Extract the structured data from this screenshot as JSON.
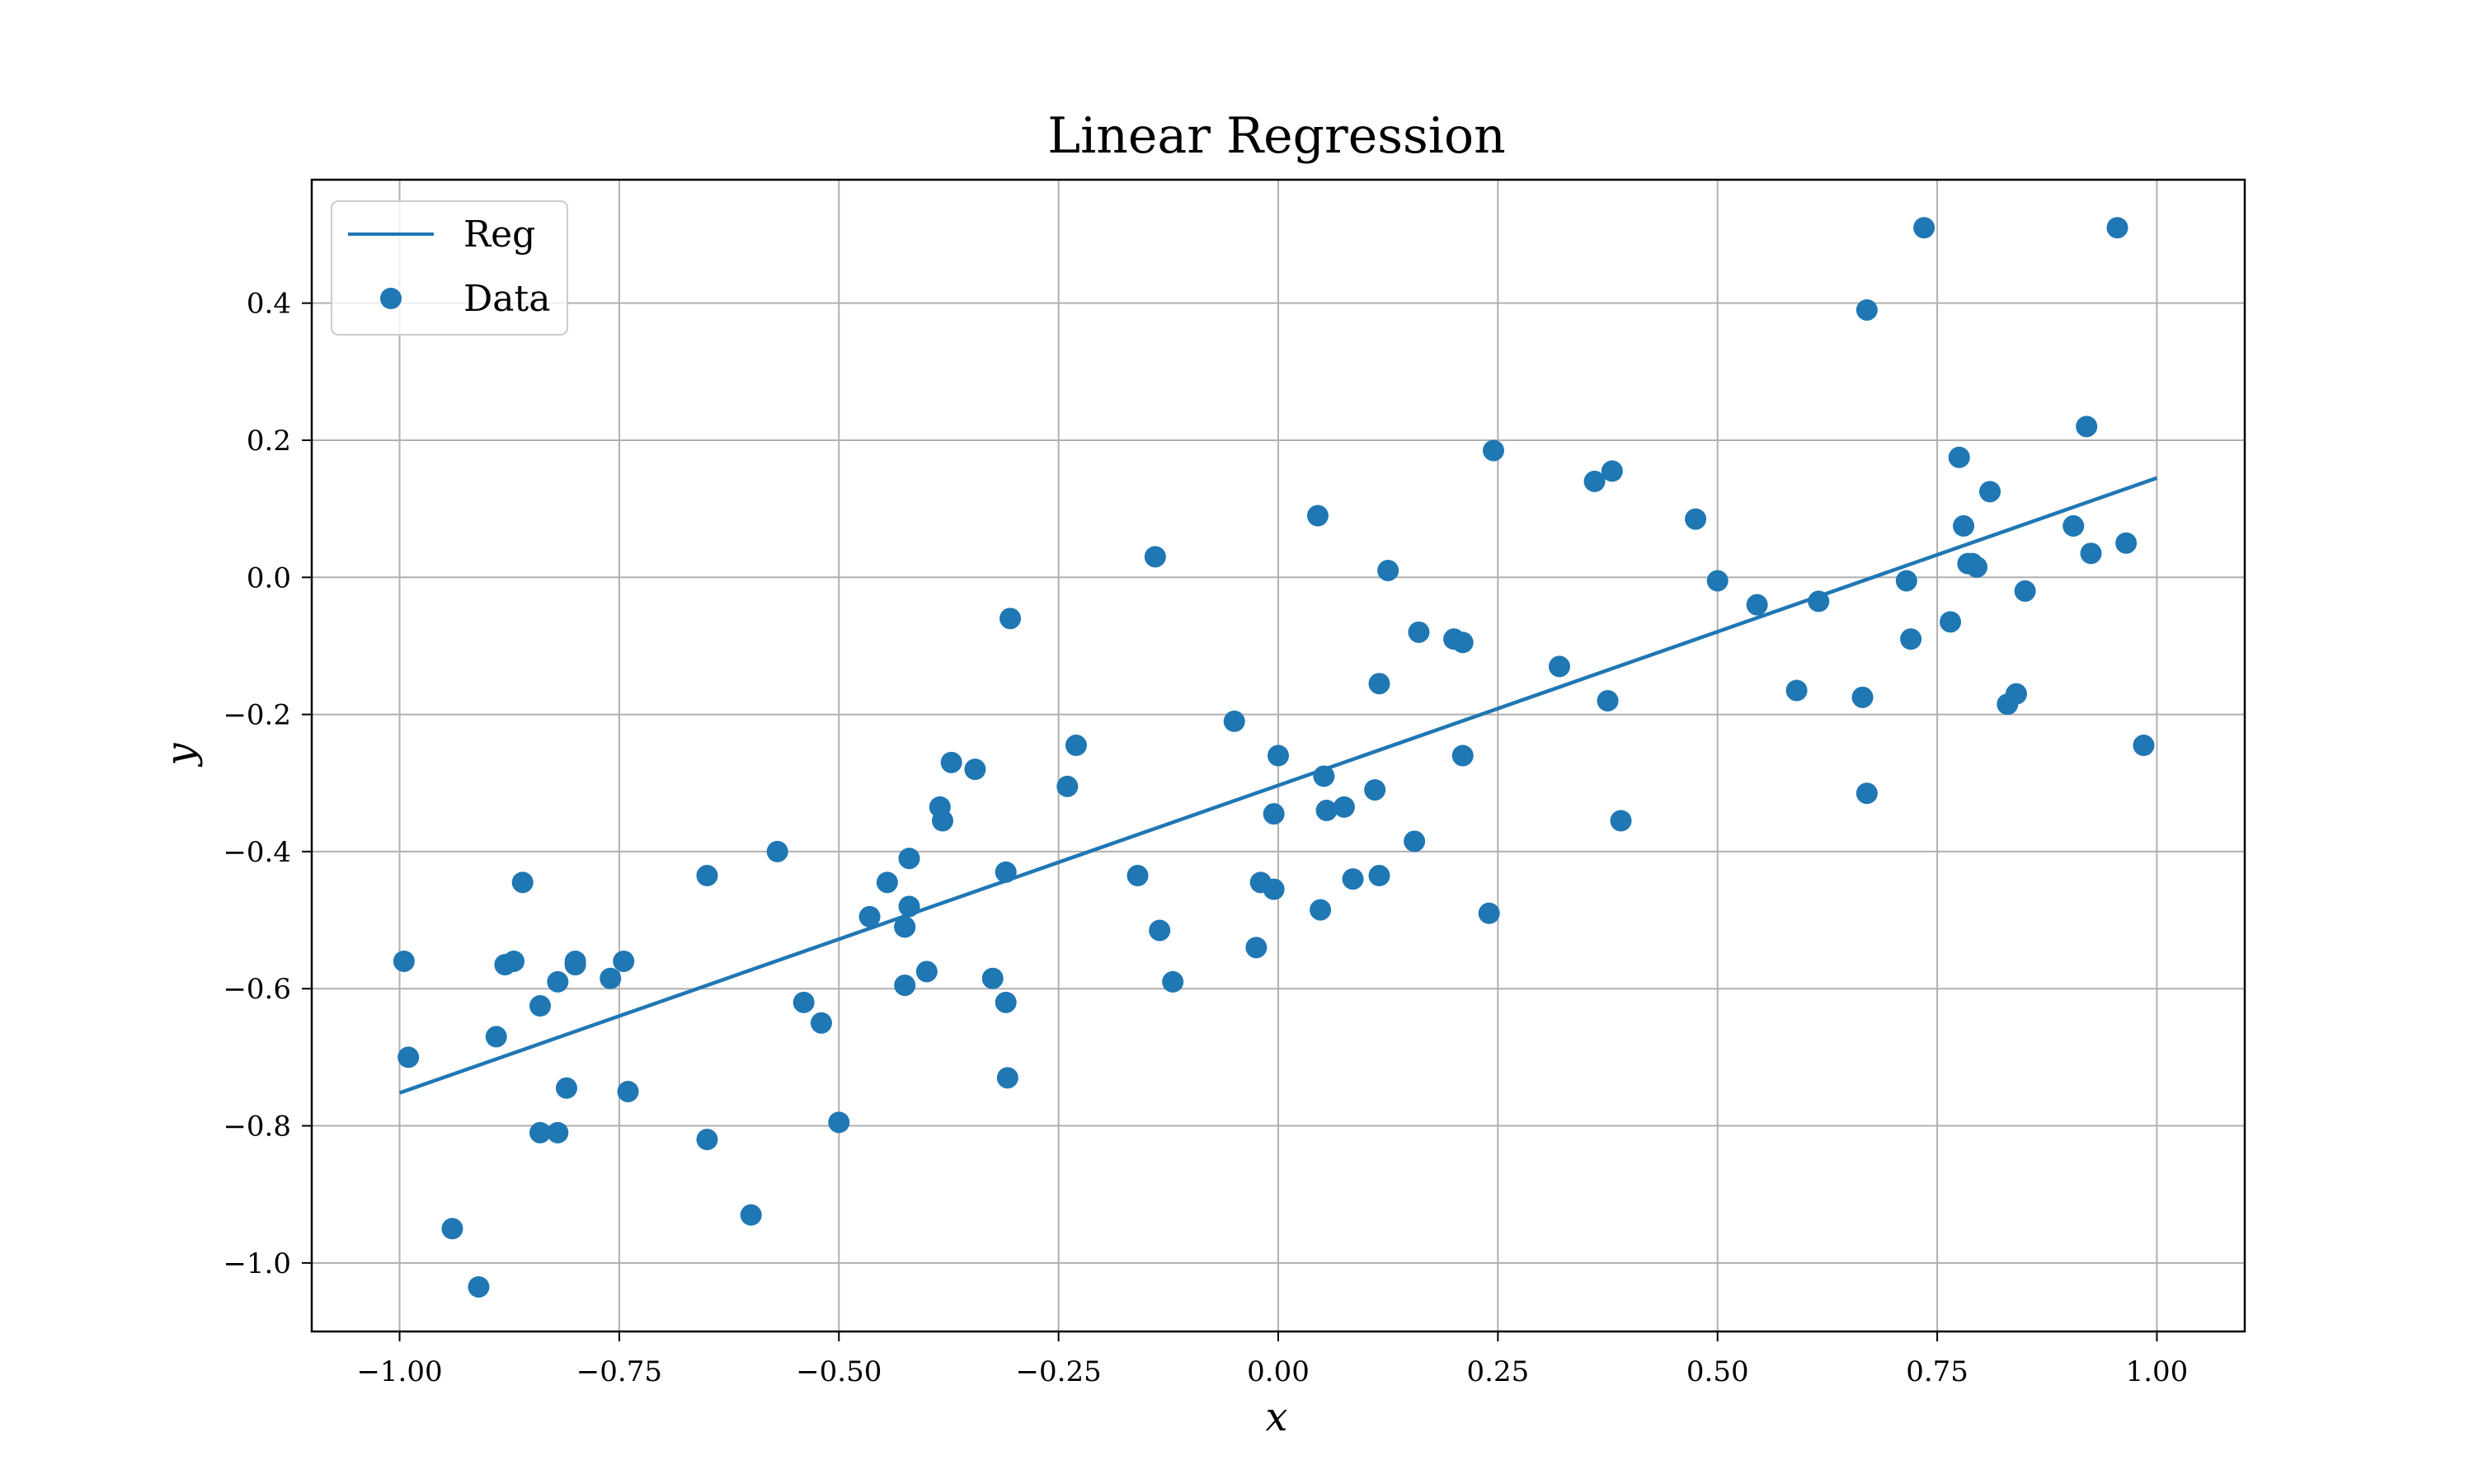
{
  "chart_data": {
    "type": "scatter",
    "title": "Linear Regression",
    "xlabel": "x",
    "ylabel": "y",
    "xlim": [
      -1.1,
      1.1
    ],
    "ylim": [
      -1.1,
      0.58
    ],
    "grid": true,
    "legend_position": "top-left",
    "x_ticks": [
      -1.0,
      -0.75,
      -0.5,
      -0.25,
      0.0,
      0.25,
      0.5,
      0.75,
      1.0
    ],
    "x_tick_labels": [
      "−1.00",
      "−0.75",
      "−0.50",
      "−0.25",
      "0.00",
      "0.25",
      "0.50",
      "0.75",
      "1.00"
    ],
    "y_ticks": [
      -1.0,
      -0.8,
      -0.6,
      -0.4,
      -0.2,
      0.0,
      0.2,
      0.4
    ],
    "y_tick_labels": [
      "−1.0",
      "−0.8",
      "−0.6",
      "−0.4",
      "−0.2",
      "0.0",
      "0.2",
      "0.4"
    ],
    "colors": {
      "series": "#1f77b4",
      "grid": "#b0b0b0",
      "axis": "#000000"
    },
    "series": [
      {
        "name": "Reg",
        "kind": "line",
        "x": [
          -1.0,
          1.0
        ],
        "y": [
          -0.752,
          0.145
        ]
      },
      {
        "name": "Data",
        "kind": "scatter",
        "x": [
          -0.995,
          -0.99,
          -0.94,
          -0.91,
          -0.89,
          -0.88,
          -0.87,
          -0.86,
          -0.84,
          -0.84,
          -0.82,
          -0.82,
          -0.81,
          -0.8,
          -0.8,
          -0.76,
          -0.745,
          -0.74,
          -0.65,
          -0.65,
          -0.6,
          -0.57,
          -0.54,
          -0.52,
          -0.5,
          -0.465,
          -0.445,
          -0.425,
          -0.425,
          -0.42,
          -0.42,
          -0.425,
          -0.4,
          -0.385,
          -0.382,
          -0.372,
          -0.345,
          -0.325,
          -0.31,
          -0.31,
          -0.308,
          -0.305,
          -0.24,
          -0.23,
          -0.16,
          -0.14,
          -0.135,
          -0.12,
          -0.05,
          -0.025,
          -0.02,
          -0.005,
          -0.005,
          0.0,
          0.045,
          0.048,
          0.052,
          0.055,
          0.075,
          0.085,
          0.11,
          0.115,
          0.115,
          0.125,
          0.155,
          0.16,
          0.2,
          0.21,
          0.21,
          0.24,
          0.245,
          0.32,
          0.36,
          0.375,
          0.38,
          0.39,
          0.475,
          0.5,
          0.545,
          0.59,
          0.615,
          0.665,
          0.67,
          0.67,
          0.715,
          0.72,
          0.735,
          0.765,
          0.775,
          0.78,
          0.785,
          0.79,
          0.795,
          0.81,
          0.83,
          0.84,
          0.85,
          0.905,
          0.92,
          0.925,
          0.955,
          0.965,
          0.985
        ],
        "y": [
          -0.56,
          -0.7,
          -0.95,
          -1.035,
          -0.67,
          -0.565,
          -0.56,
          -0.445,
          -0.625,
          -0.81,
          -0.81,
          -0.59,
          -0.745,
          -0.565,
          -0.56,
          -0.585,
          -0.56,
          -0.75,
          -0.435,
          -0.82,
          -0.93,
          -0.4,
          -0.62,
          -0.65,
          -0.795,
          -0.495,
          -0.445,
          -0.51,
          -0.595,
          -0.41,
          -0.48,
          -0.51,
          -0.575,
          -0.335,
          -0.355,
          -0.27,
          -0.28,
          -0.585,
          -0.43,
          -0.62,
          -0.73,
          -0.06,
          -0.305,
          -0.245,
          -0.435,
          0.03,
          -0.515,
          -0.59,
          -0.21,
          -0.54,
          -0.445,
          -0.455,
          -0.345,
          -0.26,
          0.09,
          -0.485,
          -0.29,
          -0.34,
          -0.335,
          -0.44,
          -0.31,
          -0.155,
          -0.435,
          0.01,
          -0.385,
          -0.08,
          -0.09,
          -0.095,
          -0.26,
          -0.49,
          0.185,
          -0.13,
          0.14,
          -0.18,
          0.155,
          -0.355,
          0.085,
          -0.005,
          -0.04,
          -0.165,
          -0.035,
          -0.175,
          0.39,
          -0.315,
          -0.005,
          -0.09,
          0.51,
          -0.065,
          0.175,
          0.075,
          0.02,
          0.02,
          0.015,
          0.125,
          -0.185,
          -0.17,
          -0.02,
          0.075,
          0.22,
          0.035,
          0.51,
          0.05,
          -0.245
        ]
      }
    ]
  }
}
